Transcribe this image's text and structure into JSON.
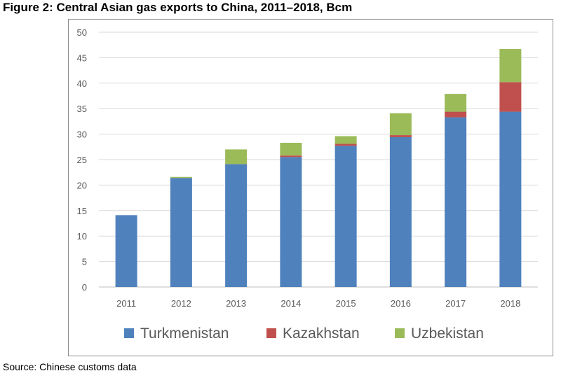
{
  "title": "Figure 2: Central Asian gas exports to China, 2011–2018, Bcm",
  "source": "Source: Chinese customs data",
  "chart_data": {
    "type": "bar",
    "stacked": true,
    "title": "",
    "xlabel": "",
    "ylabel": "",
    "categories": [
      "2011",
      "2012",
      "2013",
      "2014",
      "2015",
      "2016",
      "2017",
      "2018"
    ],
    "series": [
      {
        "name": "Turkmenistan",
        "color": "#4f81bd",
        "values": [
          14.1,
          21.4,
          24.1,
          25.5,
          27.7,
          29.4,
          33.3,
          34.4
        ]
      },
      {
        "name": "Kazakhstan",
        "color": "#c0504d",
        "values": [
          0,
          0,
          0,
          0.3,
          0.4,
          0.4,
          1.1,
          5.8
        ]
      },
      {
        "name": "Uzbekistan",
        "color": "#9bbb59",
        "values": [
          0,
          0.2,
          2.9,
          2.5,
          1.5,
          4.3,
          3.5,
          6.5
        ]
      }
    ],
    "ylim": [
      0,
      50
    ],
    "yticks": [
      0,
      5,
      10,
      15,
      20,
      25,
      30,
      35,
      40,
      45,
      50
    ],
    "grid": true,
    "legend_position": "bottom"
  }
}
